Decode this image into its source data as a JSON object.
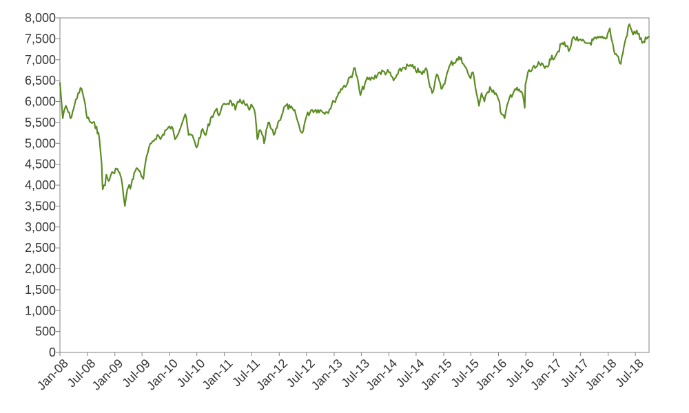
{
  "chart_data": {
    "type": "line",
    "title": "",
    "xlabel": "",
    "ylabel": "",
    "ylim": [
      0,
      8000
    ],
    "y_ticks": [
      0,
      500,
      1000,
      1500,
      2000,
      2500,
      3000,
      3500,
      4000,
      4500,
      5000,
      5500,
      6000,
      6500,
      7000,
      7500,
      8000
    ],
    "y_tick_labels": [
      "0",
      "500",
      "1,000",
      "1,500",
      "2,000",
      "2,500",
      "3,000",
      "3,500",
      "4,000",
      "4,500",
      "5,000",
      "5,500",
      "6,000",
      "6,500",
      "7,000",
      "7,500",
      "8,000"
    ],
    "x_range": [
      "2008-01-01",
      "2018-09-30"
    ],
    "x_ticks": [
      "2008-01-01",
      "2008-07-01",
      "2009-01-01",
      "2009-07-01",
      "2010-01-01",
      "2010-07-01",
      "2011-01-01",
      "2011-07-01",
      "2012-01-01",
      "2012-07-01",
      "2013-01-01",
      "2013-07-01",
      "2014-01-01",
      "2014-07-01",
      "2015-01-01",
      "2015-07-01",
      "2016-01-01",
      "2016-07-01",
      "2017-01-01",
      "2017-07-01",
      "2018-01-01",
      "2018-07-01"
    ],
    "x_tick_labels": [
      "Jan-08",
      "Jul-08",
      "Jan-09",
      "Jul-09",
      "Jan-10",
      "Jul-10",
      "Jan-11",
      "Jul-11",
      "Jan-12",
      "Jul-12",
      "Jan-13",
      "Jul-13",
      "Jan-14",
      "Jul-14",
      "Jan-15",
      "Jul-15",
      "Jan-16",
      "Jul-16",
      "Jan-17",
      "Jul-17",
      "Jan-18",
      "Jul-18"
    ],
    "grid": false,
    "legend": "none",
    "line_color": "#5b8c22",
    "axis_color": "#808080",
    "series": [
      {
        "x": [
          "2008-01-01",
          "2008-01-20",
          "2008-02-10",
          "2008-03-10",
          "2008-03-25",
          "2008-05-01",
          "2008-05-25",
          "2008-06-10",
          "2008-07-01",
          "2008-07-25",
          "2008-09-01",
          "2008-09-20",
          "2008-10-05",
          "2008-10-12",
          "2008-10-28",
          "2008-11-05",
          "2008-11-20",
          "2008-12-01",
          "2008-12-20",
          "2009-01-06",
          "2009-02-01",
          "2009-02-20",
          "2009-03-09",
          "2009-03-25",
          "2009-04-20",
          "2009-05-10",
          "2009-06-01",
          "2009-06-20",
          "2009-07-10",
          "2009-08-01",
          "2009-09-01",
          "2009-10-10",
          "2009-11-01",
          "2009-12-01",
          "2010-01-15",
          "2010-02-05",
          "2010-04-15",
          "2010-05-07",
          "2010-05-25",
          "2010-06-10",
          "2010-06-30",
          "2010-08-01",
          "2010-08-30",
          "2010-10-01",
          "2010-11-05",
          "2010-12-01",
          "2011-01-01",
          "2011-02-15",
          "2011-03-15",
          "2011-04-15",
          "2011-05-15",
          "2011-06-15",
          "2011-07-05",
          "2011-07-25",
          "2011-08-08",
          "2011-08-20",
          "2011-09-10",
          "2011-09-22",
          "2011-10-20",
          "2011-11-25",
          "2012-01-01",
          "2012-02-10",
          "2012-03-15",
          "2012-04-20",
          "2012-05-20",
          "2012-06-01",
          "2012-07-01",
          "2012-08-01",
          "2012-09-15",
          "2012-11-15",
          "2013-01-01",
          "2013-02-15",
          "2013-04-01",
          "2013-05-20",
          "2013-06-25",
          "2013-08-01",
          "2013-09-15",
          "2013-11-01",
          "2014-01-01",
          "2014-02-01",
          "2014-03-01",
          "2014-04-01",
          "2014-05-15",
          "2014-06-15",
          "2014-08-10",
          "2014-09-05",
          "2014-10-16",
          "2014-11-15",
          "2014-12-16",
          "2015-01-15",
          "2015-02-15",
          "2015-04-27",
          "2015-05-20",
          "2015-06-29",
          "2015-07-15",
          "2015-08-24",
          "2015-09-10",
          "2015-09-29",
          "2015-11-05",
          "2015-12-14",
          "2016-01-01",
          "2016-01-20",
          "2016-02-11",
          "2016-03-15",
          "2016-04-20",
          "2016-06-08",
          "2016-06-24",
          "2016-06-28",
          "2016-07-15",
          "2016-09-01",
          "2016-10-01",
          "2016-11-04",
          "2016-12-15",
          "2017-02-01",
          "2017-03-01",
          "2017-04-20",
          "2017-05-15",
          "2017-06-15",
          "2017-08-01",
          "2017-09-01",
          "2017-10-15",
          "2017-12-15",
          "2018-01-12",
          "2018-02-09",
          "2018-03-01",
          "2018-03-26",
          "2018-04-15",
          "2018-05-22",
          "2018-06-15",
          "2018-07-10",
          "2018-08-15",
          "2018-09-15",
          "2018-09-30"
        ],
        "y": [
          6450,
          5600,
          5900,
          5600,
          5750,
          6200,
          6300,
          6050,
          5600,
          5500,
          5400,
          5100,
          4500,
          3900,
          4000,
          4250,
          4100,
          4200,
          4300,
          4400,
          4300,
          4000,
          3500,
          3900,
          4000,
          4300,
          4400,
          4300,
          4150,
          4700,
          5000,
          5200,
          5100,
          5300,
          5400,
          5100,
          5700,
          5200,
          5200,
          5100,
          4900,
          5300,
          5200,
          5600,
          5800,
          5700,
          5950,
          6000,
          5800,
          6050,
          5950,
          5800,
          5900,
          5700,
          5100,
          5300,
          5200,
          5000,
          5500,
          5200,
          5550,
          5900,
          5850,
          5700,
          5300,
          5250,
          5650,
          5800,
          5800,
          5750,
          6000,
          6300,
          6450,
          6800,
          6150,
          6500,
          6550,
          6700,
          6700,
          6500,
          6650,
          6800,
          6850,
          6800,
          6650,
          6800,
          6200,
          6650,
          6300,
          6550,
          6900,
          7050,
          6850,
          6550,
          6700,
          5900,
          6200,
          6000,
          6350,
          6200,
          6050,
          5700,
          5600,
          6100,
          6300,
          6200,
          5850,
          6400,
          6700,
          6800,
          6900,
          6800,
          7000,
          7200,
          7400,
          7250,
          7550,
          7450,
          7400,
          7400,
          7500,
          7500,
          7750,
          7200,
          7100,
          6900,
          7300,
          7850,
          7600,
          7700,
          7400,
          7500,
          7550
        ]
      }
    ]
  }
}
